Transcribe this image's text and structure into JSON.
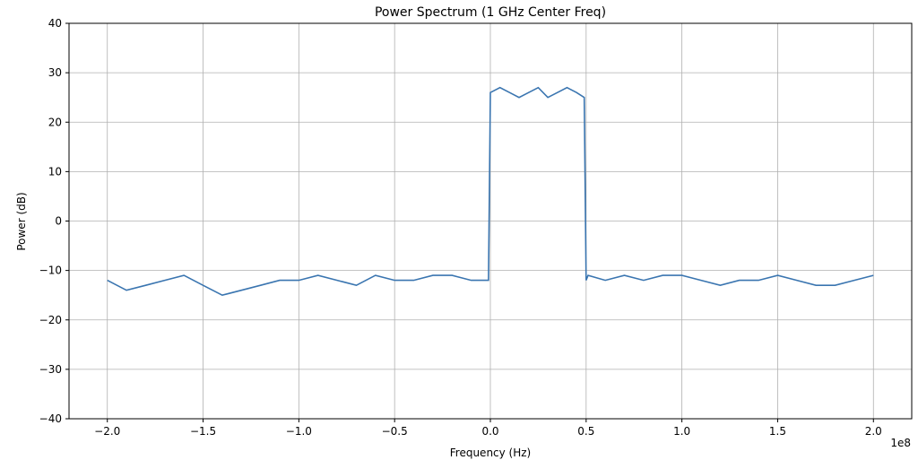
{
  "chart_data": {
    "type": "line",
    "title": "Power Spectrum (1 GHz Center Freq)",
    "xlabel": "Frequency (Hz)",
    "ylabel": "Power (dB)",
    "x_offset_label": "1e8",
    "x_scale_multiplier": 100000000,
    "xlim": [
      -2.2,
      2.2
    ],
    "ylim": [
      -40,
      40
    ],
    "x_ticks": [
      -2.0,
      -1.5,
      -1.0,
      -0.5,
      0.0,
      0.5,
      1.0,
      1.5,
      2.0
    ],
    "x_tick_labels": [
      "−2.0",
      "−1.5",
      "−1.0",
      "−0.5",
      "0.0",
      "0.5",
      "1.0",
      "1.5",
      "2.0"
    ],
    "y_ticks": [
      -40,
      -30,
      -20,
      -10,
      0,
      10,
      20,
      30,
      40
    ],
    "y_tick_labels": [
      "−40",
      "−30",
      "−20",
      "−10",
      "0",
      "10",
      "20",
      "30",
      "40"
    ],
    "grid": true,
    "line_color": "#3a75b0",
    "series": [
      {
        "x": [
          -2.0,
          -1.9,
          -1.8,
          -1.7,
          -1.6,
          -1.5,
          -1.4,
          -1.3,
          -1.2,
          -1.1,
          -1.0,
          -0.9,
          -0.8,
          -0.7,
          -0.6,
          -0.5,
          -0.4,
          -0.3,
          -0.2,
          -0.1,
          -0.01,
          0.0,
          0.05,
          0.1,
          0.15,
          0.2,
          0.25,
          0.3,
          0.35,
          0.4,
          0.45,
          0.49,
          0.5,
          0.51,
          0.6,
          0.7,
          0.8,
          0.9,
          1.0,
          1.1,
          1.2,
          1.3,
          1.4,
          1.5,
          1.6,
          1.7,
          1.8,
          1.9,
          2.0
        ],
        "values": [
          -12,
          -14,
          -13,
          -12,
          -11,
          -13,
          -15,
          -14,
          -13,
          -12,
          -12,
          -11,
          -12,
          -13,
          -11,
          -12,
          -12,
          -11,
          -11,
          -12,
          -12,
          26,
          27,
          26,
          25,
          26,
          27,
          25,
          26,
          27,
          26,
          25,
          -12,
          -11,
          -12,
          -11,
          -12,
          -11,
          -11,
          -12,
          -13,
          -12,
          -12,
          -11,
          -12,
          -13,
          -13,
          -12,
          -11
        ]
      }
    ]
  }
}
